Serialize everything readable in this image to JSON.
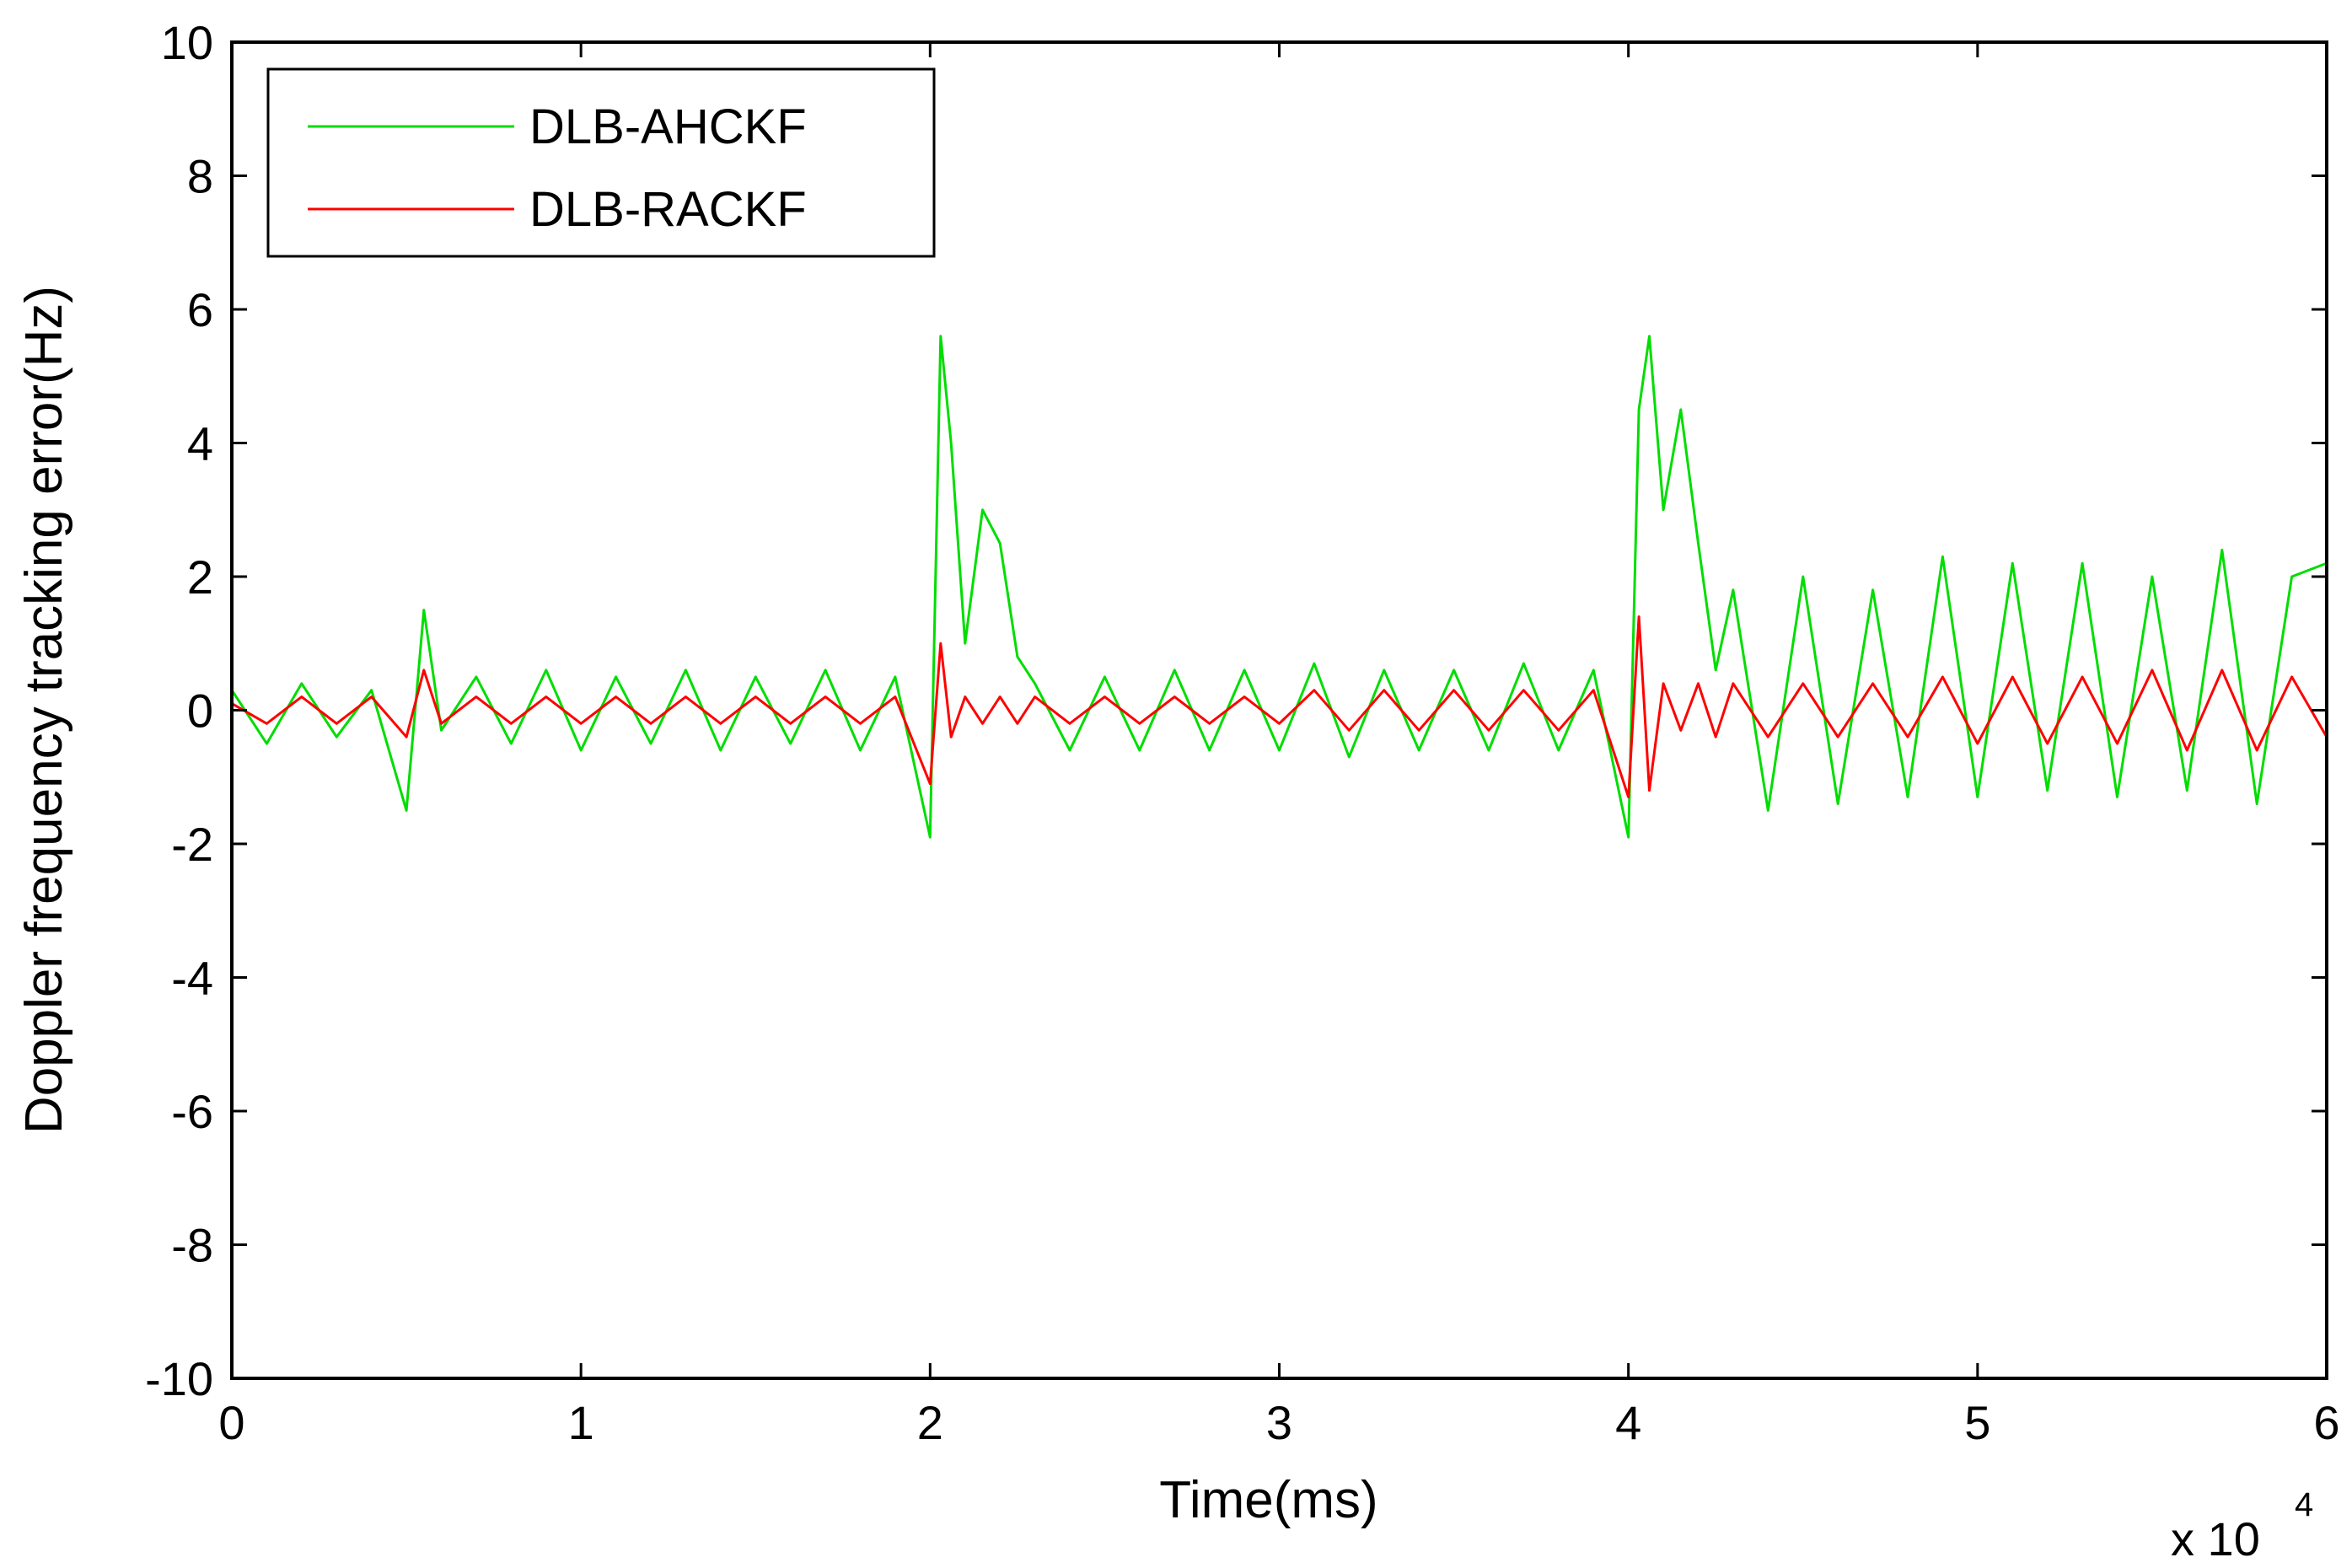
{
  "chart_data": {
    "type": "line",
    "title": "",
    "xlabel": "Time(ms)",
    "ylabel": "Doppler frequency tracking error(Hz)",
    "x_multiplier_label": {
      "base": "x 10",
      "exponent": "4"
    },
    "xlim": [
      0,
      60000
    ],
    "ylim": [
      -10,
      10
    ],
    "x_ticks": [
      0,
      10000,
      20000,
      30000,
      40000,
      50000,
      60000
    ],
    "x_tick_labels": [
      "0",
      "1",
      "2",
      "3",
      "4",
      "5",
      "6"
    ],
    "y_ticks": [
      -10,
      -8,
      -6,
      -4,
      -2,
      0,
      2,
      4,
      6,
      8,
      10
    ],
    "y_tick_labels": [
      "-10",
      "-8",
      "-6",
      "-4",
      "-2",
      "0",
      "2",
      "4",
      "6",
      "8",
      "10"
    ],
    "grid": false,
    "legend": {
      "placement": "top-left"
    },
    "x": [
      0,
      1000,
      2000,
      3000,
      4000,
      5000,
      5500,
      6000,
      7000,
      8000,
      9000,
      10000,
      11000,
      12000,
      13000,
      14000,
      15000,
      16000,
      17000,
      18000,
      19000,
      20000,
      20300,
      20600,
      21000,
      21500,
      22000,
      22500,
      23000,
      24000,
      25000,
      26000,
      27000,
      28000,
      29000,
      30000,
      31000,
      32000,
      33000,
      34000,
      35000,
      36000,
      37000,
      38000,
      39000,
      40000,
      40300,
      40600,
      41000,
      41500,
      42000,
      42500,
      43000,
      44000,
      45000,
      46000,
      47000,
      48000,
      49000,
      50000,
      51000,
      52000,
      53000,
      54000,
      55000,
      56000,
      57000,
      58000,
      59000,
      60000
    ],
    "series": [
      {
        "name": "DLB-AHCKF",
        "color": "#00dd00",
        "values": [
          0.3,
          -0.5,
          0.4,
          -0.4,
          0.3,
          -1.5,
          1.5,
          -0.3,
          0.5,
          -0.5,
          0.6,
          -0.6,
          0.5,
          -0.5,
          0.6,
          -0.6,
          0.5,
          -0.5,
          0.6,
          -0.6,
          0.5,
          -1.9,
          5.6,
          4.0,
          1.0,
          3.0,
          2.5,
          0.8,
          0.4,
          -0.6,
          0.5,
          -0.6,
          0.6,
          -0.6,
          0.6,
          -0.6,
          0.7,
          -0.7,
          0.6,
          -0.6,
          0.6,
          -0.6,
          0.7,
          -0.6,
          0.6,
          -1.9,
          4.5,
          5.6,
          3.0,
          4.5,
          2.5,
          0.6,
          1.8,
          -1.5,
          2.0,
          -1.4,
          1.8,
          -1.3,
          2.3,
          -1.3,
          2.2,
          -1.2,
          2.2,
          -1.3,
          2.0,
          -1.2,
          2.4,
          -1.4,
          2.0,
          2.2
        ]
      },
      {
        "name": "DLB-RACKF",
        "color": "#ff0000",
        "values": [
          0.1,
          -0.2,
          0.2,
          -0.2,
          0.2,
          -0.4,
          0.6,
          -0.2,
          0.2,
          -0.2,
          0.2,
          -0.2,
          0.2,
          -0.2,
          0.2,
          -0.2,
          0.2,
          -0.2,
          0.2,
          -0.2,
          0.2,
          -1.1,
          1.0,
          -0.4,
          0.2,
          -0.2,
          0.2,
          -0.2,
          0.2,
          -0.2,
          0.2,
          -0.2,
          0.2,
          -0.2,
          0.2,
          -0.2,
          0.3,
          -0.3,
          0.3,
          -0.3,
          0.3,
          -0.3,
          0.3,
          -0.3,
          0.3,
          -1.3,
          1.4,
          -1.2,
          0.4,
          -0.3,
          0.4,
          -0.4,
          0.4,
          -0.4,
          0.4,
          -0.4,
          0.4,
          -0.4,
          0.5,
          -0.5,
          0.5,
          -0.5,
          0.5,
          -0.5,
          0.6,
          -0.6,
          0.6,
          -0.6,
          0.5,
          -0.4
        ]
      }
    ]
  }
}
